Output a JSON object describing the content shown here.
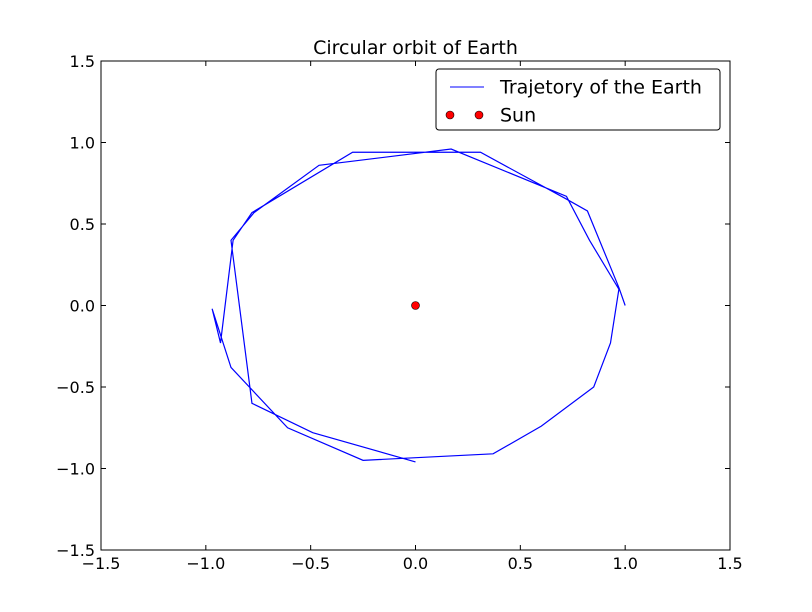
{
  "chart_data": {
    "type": "line",
    "title": "Circular orbit of Earth",
    "xlabel": "",
    "ylabel": "",
    "xlim": [
      -1.5,
      1.5
    ],
    "ylim": [
      -1.5,
      1.5
    ],
    "xticks": [
      -1.5,
      -1.0,
      -0.5,
      0.0,
      0.5,
      1.0,
      1.5
    ],
    "yticks": [
      -1.5,
      -1.0,
      -0.5,
      0.0,
      0.5,
      1.0,
      1.5
    ],
    "xtick_labels": [
      "−1.5",
      "−1.0",
      "−0.5",
      "0.0",
      "0.5",
      "1.0",
      "1.5"
    ],
    "ytick_labels": [
      "−1.5",
      "−1.0",
      "−0.5",
      "0.0",
      "0.5",
      "1.0",
      "1.5"
    ],
    "grid": false,
    "legend_position": "top-right",
    "series": [
      {
        "name": "Trajetory of the Earth",
        "kind": "line",
        "color": "#0000ff",
        "x": [
          1.0,
          0.97,
          0.82,
          0.71,
          0.31,
          -0.3,
          -0.78,
          -0.87,
          -0.93,
          -0.97,
          -0.88,
          -0.61,
          -0.25,
          0.37,
          0.6,
          0.85,
          0.93,
          0.97,
          0.83,
          0.72,
          0.17,
          -0.46,
          -0.77,
          -0.88,
          -0.78,
          -0.49,
          0.0
        ],
        "y": [
          0.0,
          0.11,
          0.58,
          0.66,
          0.94,
          0.94,
          0.57,
          0.4,
          -0.23,
          -0.02,
          -0.38,
          -0.75,
          -0.95,
          -0.91,
          -0.74,
          -0.5,
          -0.23,
          0.1,
          0.4,
          0.67,
          0.96,
          0.86,
          0.57,
          0.4,
          -0.6,
          -0.78,
          -0.96
        ]
      },
      {
        "name": "Sun",
        "kind": "marker",
        "color": "#ff0000",
        "x": [
          0.0
        ],
        "y": [
          0.0
        ]
      }
    ]
  }
}
